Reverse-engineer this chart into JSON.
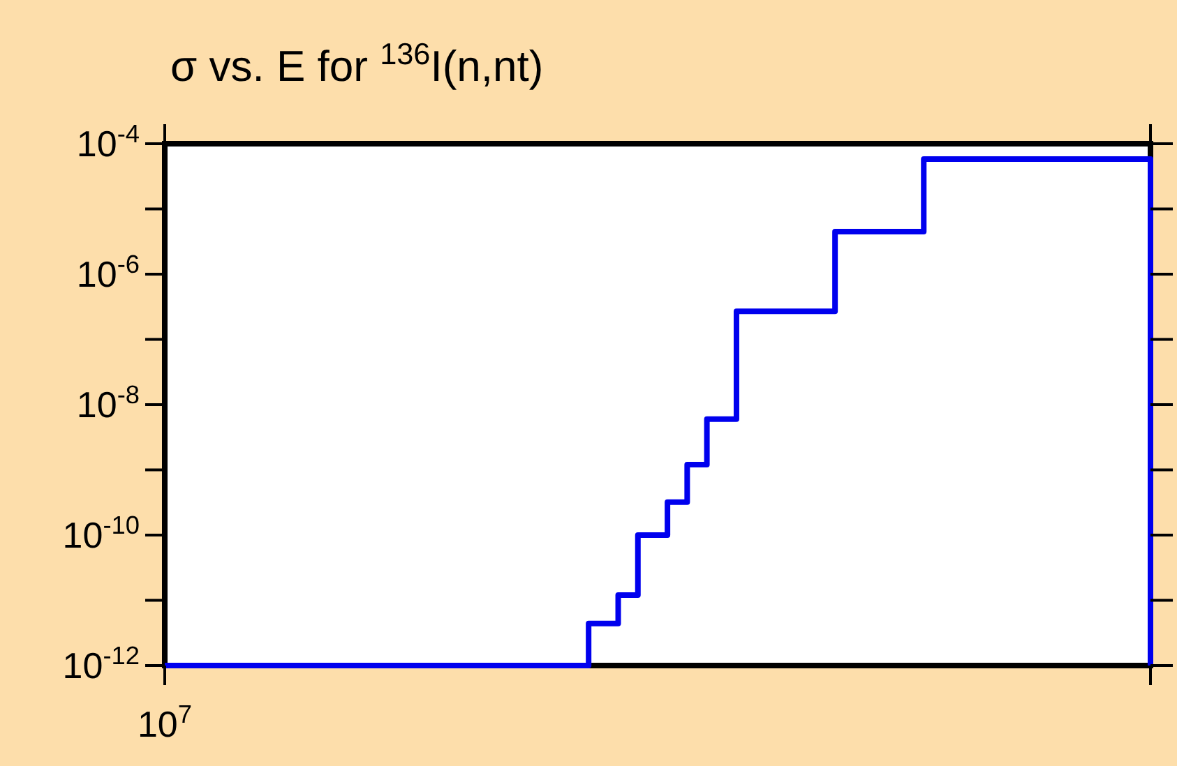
{
  "chart_data": {
    "type": "step",
    "title": "σ vs. E for $^{136}$I(n,nt)",
    "log": "y",
    "categories": [
      null,
      null,
      null,
      null,
      null,
      null,
      null,
      null,
      null,
      null,
      null,
      null,
      null,
      null,
      null,
      null,
      null,
      null,
      null,
      null,
      null,
      null,
      null,
      null,
      null,
      null,
      null,
      null,
      null,
      null,
      null,
      null,
      null,
      null,
      null,
      null,
      null,
      null,
      null,
      null,
      null,
      null,
      null,
      null,
      null,
      null,
      null,
      null,
      null,
      null,
      null,
      null,
      null,
      null,
      null,
      null,
      null,
      null,
      null,
      null,
      null,
      null,
      null,
      null,
      null,
      null,
      null,
      null,
      null,
      null,
      null,
      null,
      null,
      null,
      null,
      null,
      null,
      null,
      null,
      null,
      null,
      null,
      null,
      null,
      null,
      null,
      null,
      null,
      null,
      null,
      null,
      null,
      null,
      null,
      null,
      null,
      null,
      null,
      null,
      null,
      null
    ],
    "series": [
      {
        "color": "#0000ee",
        "values": [
          1e-12,
          1e-12,
          1e-12,
          1e-12,
          1e-12,
          1e-12,
          1e-12,
          1e-12,
          1e-12,
          1e-12,
          1e-12,
          1e-12,
          1e-12,
          1e-12,
          1e-12,
          1e-12,
          1e-12,
          1e-12,
          1e-12,
          1e-12,
          1e-12,
          1e-12,
          1e-12,
          1e-12,
          1e-12,
          1e-12,
          1e-12,
          1e-12,
          1e-12,
          1e-12,
          1e-12,
          1e-12,
          1e-12,
          1e-12,
          1e-12,
          1e-12,
          1e-12,
          1e-12,
          1e-12,
          1e-12,
          1e-12,
          1e-12,
          1e-12,
          4.4e-12,
          4.4e-12,
          4.4e-12,
          1.2e-11,
          1.2e-11,
          1e-10,
          1e-10,
          1e-10,
          3.2e-10,
          3.2e-10,
          1.2e-09,
          1.2e-09,
          6e-09,
          6e-09,
          6e-09,
          2.7e-07,
          2.7e-07,
          2.7e-07,
          2.7e-07,
          2.7e-07,
          2.7e-07,
          2.7e-07,
          2.7e-07,
          2.7e-07,
          2.7e-07,
          4.5e-06,
          4.5e-06,
          4.5e-06,
          4.5e-06,
          4.5e-06,
          4.5e-06,
          4.5e-06,
          4.5e-06,
          4.5e-06,
          5.8e-05,
          5.8e-05,
          5.8e-05,
          5.8e-05,
          5.8e-05,
          5.8e-05,
          5.8e-05,
          5.8e-05,
          5.8e-05,
          5.8e-05,
          5.8e-05,
          5.8e-05,
          5.8e-05,
          5.8e-05,
          5.8e-05,
          5.8e-05,
          5.8e-05,
          5.8e-05,
          5.8e-05,
          5.8e-05,
          5.8e-05,
          5.8e-05,
          5.8e-05,
          1e-12
        ]
      }
    ],
    "annotations": [
      "10$^{7}$"
    ],
    "ylim": [
      1e-12,
      0.0001
    ],
    "yticks": [
      {
        "value": 1e-12,
        "label": "10$^{-12}$"
      },
      {
        "value": 1e-11,
        "label": null
      },
      {
        "value": 1e-10,
        "label": "10$^{-10}$"
      },
      {
        "value": 1e-09,
        "label": null
      },
      {
        "value": 1e-08,
        "label": "10$^{-8}$"
      },
      {
        "value": 1e-07,
        "label": null
      },
      {
        "value": 1e-06,
        "label": "10$^{-6}$"
      },
      {
        "value": 1e-05,
        "label": null
      },
      {
        "value": 0.0001,
        "label": "10$^{-4}$"
      }
    ],
    "grid": false
  }
}
